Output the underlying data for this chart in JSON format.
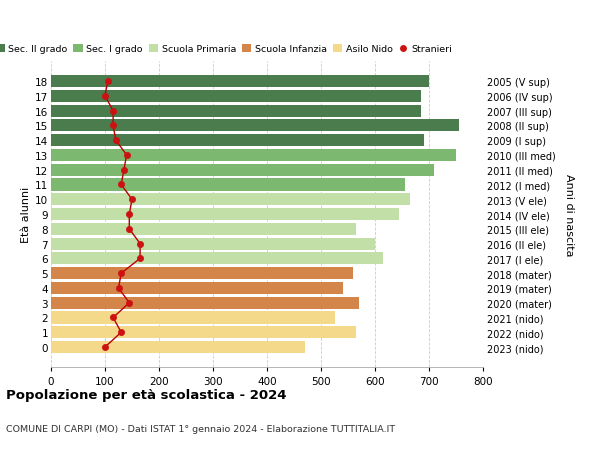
{
  "ages": [
    18,
    17,
    16,
    15,
    14,
    13,
    12,
    11,
    10,
    9,
    8,
    7,
    6,
    5,
    4,
    3,
    2,
    1,
    0
  ],
  "right_labels": [
    "2005 (V sup)",
    "2006 (IV sup)",
    "2007 (III sup)",
    "2008 (II sup)",
    "2009 (I sup)",
    "2010 (III med)",
    "2011 (II med)",
    "2012 (I med)",
    "2013 (V ele)",
    "2014 (IV ele)",
    "2015 (III ele)",
    "2016 (II ele)",
    "2017 (I ele)",
    "2018 (mater)",
    "2019 (mater)",
    "2020 (mater)",
    "2021 (nido)",
    "2022 (nido)",
    "2023 (nido)"
  ],
  "bar_values": [
    700,
    685,
    685,
    755,
    690,
    750,
    710,
    655,
    665,
    645,
    565,
    600,
    615,
    560,
    540,
    570,
    525,
    565,
    470
  ],
  "stranieri_values": [
    105,
    100,
    115,
    115,
    120,
    140,
    135,
    130,
    150,
    145,
    145,
    165,
    165,
    130,
    125,
    145,
    115,
    130,
    100
  ],
  "bar_colors": [
    "#4a7c4e",
    "#4a7c4e",
    "#4a7c4e",
    "#4a7c4e",
    "#4a7c4e",
    "#7db870",
    "#7db870",
    "#7db870",
    "#c2dfa8",
    "#c2dfa8",
    "#c2dfa8",
    "#c2dfa8",
    "#c2dfa8",
    "#d4854a",
    "#d4854a",
    "#d4854a",
    "#f5d98a",
    "#f5d98a",
    "#f5d98a"
  ],
  "stranieri_color": "#cc1111",
  "stranieri_line_color": "#bb0000",
  "xlim": [
    0,
    800
  ],
  "xticks": [
    0,
    100,
    200,
    300,
    400,
    500,
    600,
    700,
    800
  ],
  "ylabel_left": "Età alunni",
  "ylabel_right": "Anni di nascita",
  "title": "Popolazione per età scolastica - 2024",
  "subtitle": "COMUNE DI CARPI (MO) - Dati ISTAT 1° gennaio 2024 - Elaborazione TUTTITALIA.IT",
  "legend_labels": [
    "Sec. II grado",
    "Sec. I grado",
    "Scuola Primaria",
    "Scuola Infanzia",
    "Asilo Nido",
    "Stranieri"
  ],
  "legend_colors": [
    "#4a7c4e",
    "#7db870",
    "#c2dfa8",
    "#d4854a",
    "#f5d98a",
    "#cc1111"
  ],
  "background_color": "#ffffff",
  "grid_color": "#cccccc"
}
